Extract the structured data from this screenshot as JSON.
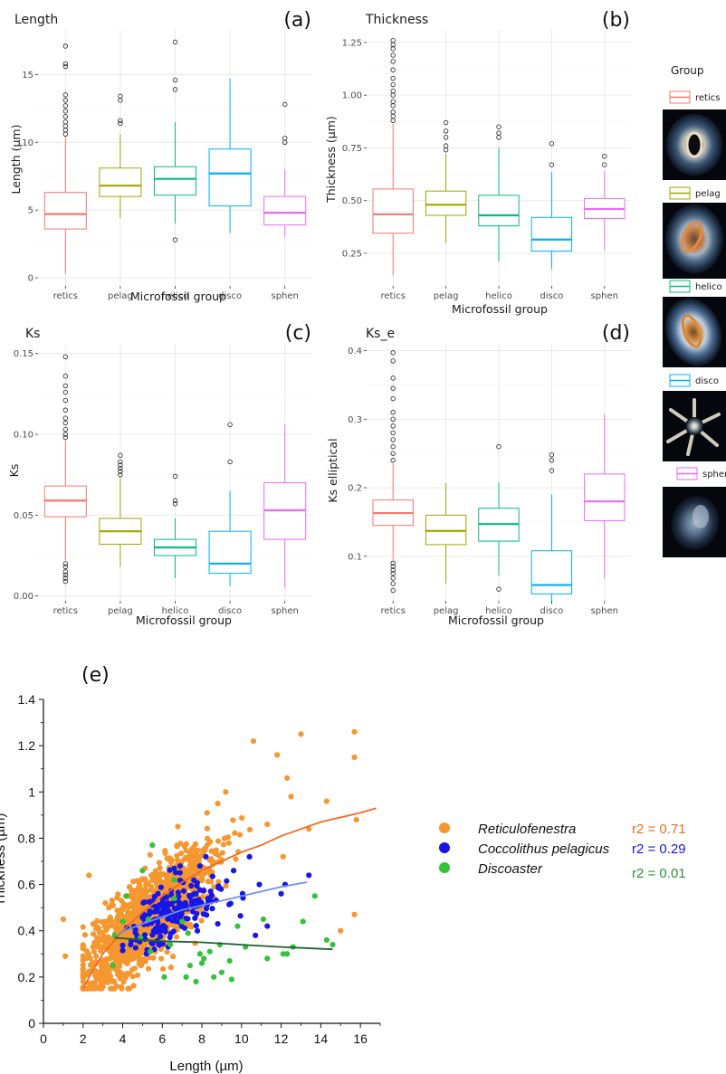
{
  "chart_data": [
    {
      "id": "a",
      "type": "box",
      "panel_label": "(a)",
      "title": "Length",
      "xlabel": "Microfossil group",
      "ylabel": "Length (µm)",
      "ylim": [
        -0.6,
        18.3
      ],
      "yticks": [
        0,
        5,
        10,
        15
      ],
      "ytick_labels": [
        "0",
        "5",
        "10",
        "15"
      ],
      "grid": true,
      "categories": [
        "retics",
        "pelag",
        "helico",
        "disco",
        "sphen"
      ],
      "boxes": [
        {
          "q1": 3.6,
          "median": 4.7,
          "q3": 6.3,
          "lower": 0.3,
          "upper": 10.4,
          "outliers": [
            10.6,
            10.9,
            11.2,
            11.5,
            11.9,
            12.3,
            12.7,
            13.1,
            13.5,
            15.6,
            15.8,
            17.1
          ]
        },
        {
          "q1": 6.0,
          "median": 6.8,
          "q3": 8.1,
          "lower": 4.4,
          "upper": 10.6,
          "outliers": [
            11.4,
            11.6,
            13.1,
            13.4
          ]
        },
        {
          "q1": 6.1,
          "median": 7.3,
          "q3": 8.2,
          "lower": 4.0,
          "upper": 11.5,
          "outliers": [
            2.8,
            13.9,
            14.6,
            17.4
          ]
        },
        {
          "q1": 5.3,
          "median": 7.7,
          "q3": 9.5,
          "lower": 3.3,
          "upper": 14.7,
          "outliers": []
        },
        {
          "q1": 3.9,
          "median": 4.8,
          "q3": 6.0,
          "lower": 3.0,
          "upper": 8.0,
          "outliers": [
            10.0,
            10.3,
            12.8
          ]
        }
      ]
    },
    {
      "id": "b",
      "type": "box",
      "panel_label": "(b)",
      "title": "Thickness",
      "xlabel": "Microfossil group",
      "ylabel": "Thickness (µm)",
      "ylim": [
        0.095,
        1.31
      ],
      "yticks": [
        0.25,
        0.5,
        0.75,
        1.0,
        1.25
      ],
      "ytick_labels": [
        "0.25",
        "0.50",
        "0.75",
        "1.00",
        "1.25"
      ],
      "grid": true,
      "categories": [
        "retics",
        "pelag",
        "helico",
        "disco",
        "sphen"
      ],
      "boxes": [
        {
          "q1": 0.345,
          "median": 0.435,
          "q3": 0.555,
          "lower": 0.145,
          "upper": 0.865,
          "outliers": [
            0.88,
            0.9,
            0.92,
            0.95,
            0.97,
            1.0,
            1.02,
            1.05,
            1.08,
            1.12,
            1.16,
            1.19,
            1.22,
            1.24,
            1.26
          ]
        },
        {
          "q1": 0.43,
          "median": 0.48,
          "q3": 0.545,
          "lower": 0.3,
          "upper": 0.72,
          "outliers": [
            0.74,
            0.76,
            0.8,
            0.83,
            0.87
          ]
        },
        {
          "q1": 0.38,
          "median": 0.43,
          "q3": 0.525,
          "lower": 0.21,
          "upper": 0.75,
          "outliers": [
            0.8,
            0.82,
            0.85
          ]
        },
        {
          "q1": 0.26,
          "median": 0.315,
          "q3": 0.42,
          "lower": 0.175,
          "upper": 0.635,
          "outliers": [
            0.67,
            0.77
          ]
        },
        {
          "q1": 0.415,
          "median": 0.46,
          "q3": 0.51,
          "lower": 0.265,
          "upper": 0.64,
          "outliers": [
            0.67,
            0.71
          ]
        }
      ]
    },
    {
      "id": "c",
      "type": "box",
      "panel_label": "(c)",
      "title": "Ks",
      "xlabel": "Microfossil group",
      "ylabel": "Ks",
      "ylim": [
        -0.003,
        0.156
      ],
      "yticks": [
        0.0,
        0.05,
        0.1,
        0.15
      ],
      "ytick_labels": [
        "0.00",
        "0.05",
        "0.10",
        "0.15"
      ],
      "grid": true,
      "categories": [
        "retics",
        "pelag",
        "helico",
        "disco",
        "sphen"
      ],
      "boxes": [
        {
          "q1": 0.049,
          "median": 0.059,
          "q3": 0.068,
          "lower": 0.022,
          "upper": 0.096,
          "outliers": [
            0.009,
            0.011,
            0.013,
            0.015,
            0.018,
            0.02,
            0.098,
            0.1,
            0.103,
            0.107,
            0.11,
            0.115,
            0.121,
            0.126,
            0.13,
            0.136,
            0.148
          ]
        },
        {
          "q1": 0.032,
          "median": 0.04,
          "q3": 0.048,
          "lower": 0.018,
          "upper": 0.073,
          "outliers": [
            0.075,
            0.077,
            0.079,
            0.081,
            0.083,
            0.087
          ]
        },
        {
          "q1": 0.025,
          "median": 0.03,
          "q3": 0.035,
          "lower": 0.011,
          "upper": 0.048,
          "outliers": [
            0.057,
            0.059,
            0.074
          ]
        },
        {
          "q1": 0.014,
          "median": 0.02,
          "q3": 0.04,
          "lower": 0.006,
          "upper": 0.065,
          "outliers": [
            0.083,
            0.106
          ]
        },
        {
          "q1": 0.035,
          "median": 0.053,
          "q3": 0.07,
          "lower": 0.005,
          "upper": 0.106,
          "outliers": []
        }
      ]
    },
    {
      "id": "d",
      "type": "box",
      "panel_label": "(d)",
      "title": "Ks_e",
      "xlabel": "Microfossil group",
      "ylabel": "Ks elliptical",
      "ylim": [
        0.035,
        0.41
      ],
      "yticks": [
        0.1,
        0.2,
        0.3,
        0.4
      ],
      "ytick_labels": [
        "0.1",
        "0.2",
        "0.3",
        "0.4"
      ],
      "grid": true,
      "categories": [
        "retics",
        "pelag",
        "helico",
        "disco",
        "sphen"
      ],
      "boxes": [
        {
          "q1": 0.145,
          "median": 0.163,
          "q3": 0.182,
          "lower": 0.095,
          "upper": 0.235,
          "outliers": [
            0.05,
            0.06,
            0.068,
            0.075,
            0.08,
            0.085,
            0.09,
            0.24,
            0.25,
            0.26,
            0.27,
            0.28,
            0.29,
            0.3,
            0.31,
            0.33,
            0.345,
            0.36,
            0.385,
            0.397
          ]
        },
        {
          "q1": 0.117,
          "median": 0.137,
          "q3": 0.16,
          "lower": 0.06,
          "upper": 0.207,
          "outliers": []
        },
        {
          "q1": 0.122,
          "median": 0.147,
          "q3": 0.17,
          "lower": 0.072,
          "upper": 0.208,
          "outliers": [
            0.052,
            0.26
          ]
        },
        {
          "q1": 0.045,
          "median": 0.058,
          "q3": 0.108,
          "lower": 0.03,
          "upper": 0.19,
          "outliers": [
            0.225,
            0.24,
            0.248
          ]
        },
        {
          "q1": 0.152,
          "median": 0.18,
          "q3": 0.22,
          "lower": 0.068,
          "upper": 0.307,
          "outliers": []
        }
      ]
    },
    {
      "id": "e",
      "type": "scatter",
      "panel_label": "(e)",
      "xlabel": "Length (µm)",
      "ylabel": "Thickness (µm)",
      "xlim": [
        0,
        17
      ],
      "ylim": [
        0,
        1.4
      ],
      "xticks": [
        0,
        2,
        4,
        6,
        8,
        10,
        12,
        14,
        16
      ],
      "xtick_labels": [
        "0",
        "2",
        "4",
        "6",
        "8",
        "10",
        "12",
        "14",
        "16"
      ],
      "yticks": [
        0,
        0.2,
        0.4,
        0.6,
        0.8,
        1.0,
        1.2,
        1.4
      ],
      "ytick_labels": [
        "0",
        "0.2",
        "0.4",
        "0.6",
        "0.8",
        "1",
        "1.2",
        "1.4"
      ],
      "grid": false,
      "legend_position": "right",
      "series": [
        {
          "name": "Reticulofenestra",
          "color": "#f6962f",
          "r2_label": "r2 = 0.71",
          "r2_color": "#f26b21",
          "line_color": "#f26b21",
          "fit": [
            [
              2,
              0.15
            ],
            [
              2.5,
              0.23
            ],
            [
              3,
              0.3
            ],
            [
              3.5,
              0.35
            ],
            [
              4,
              0.4
            ],
            [
              5,
              0.48
            ],
            [
              6,
              0.55
            ],
            [
              7,
              0.61
            ],
            [
              8,
              0.66
            ],
            [
              9,
              0.7
            ],
            [
              10,
              0.74
            ],
            [
              11,
              0.77
            ],
            [
              12,
              0.81
            ],
            [
              13,
              0.84
            ],
            [
              14,
              0.87
            ],
            [
              15,
              0.89
            ],
            [
              16,
              0.91
            ],
            [
              16.8,
              0.93
            ]
          ],
          "points": [
            [
              1.0,
              0.45
            ],
            [
              1.1,
              0.29
            ],
            [
              2.3,
              0.64
            ],
            [
              2.8,
              0.41
            ],
            [
              3.1,
              0.18
            ],
            [
              3.5,
              0.15
            ],
            [
              3.7,
              0.16
            ],
            [
              11.8,
              1.16
            ],
            [
              12.3,
              1.06
            ],
            [
              13.0,
              1.25
            ],
            [
              13.4,
              0.84
            ],
            [
              15.7,
              1.26
            ],
            [
              15.7,
              1.15
            ],
            [
              15.7,
              0.47
            ],
            [
              15.8,
              0.88
            ],
            [
              14.3,
              0.96
            ],
            [
              12.5,
              0.98
            ],
            [
              11.3,
              0.86
            ],
            [
              10.6,
              1.22
            ],
            [
              12.1,
              0.72
            ],
            [
              15.0,
              0.4
            ],
            [
              8.8,
              0.95
            ],
            [
              9.2,
              1.0
            ],
            [
              3.3,
              0.5
            ],
            [
              2.5,
              0.33
            ]
          ],
          "cloud": {
            "count": 1300,
            "x_center": 5.3,
            "x_spread": 1.6,
            "x_range": [
              2.0,
              12.0
            ],
            "slope": 0.075,
            "intercept": 0.06,
            "y_noise": 0.09,
            "y_range": [
              0.15,
              1.2
            ]
          }
        },
        {
          "name": "Coccolithus pelagicus",
          "color": "#1616e6",
          "r2_label": "r2 = 0.29",
          "r2_color": "#1616e6",
          "line_color": "#6f8ff0",
          "fit": [
            [
              3.8,
              0.39
            ],
            [
              5,
              0.43
            ],
            [
              6,
              0.46
            ],
            [
              7,
              0.49
            ],
            [
              8,
              0.51
            ],
            [
              9,
              0.53
            ],
            [
              10,
              0.55
            ],
            [
              11,
              0.57
            ],
            [
              12,
              0.59
            ],
            [
              13.3,
              0.61
            ]
          ],
          "points": [
            [
              13.4,
              0.64
            ],
            [
              12.2,
              0.6
            ],
            [
              10.4,
              0.72
            ],
            [
              9.6,
              0.66
            ],
            [
              8.2,
              0.72
            ],
            [
              10.9,
              0.6
            ],
            [
              7.9,
              0.68
            ],
            [
              6.6,
              0.67
            ],
            [
              8.8,
              0.43
            ],
            [
              12.0,
              0.56
            ],
            [
              4.4,
              0.34
            ],
            [
              5.2,
              0.3
            ],
            [
              5.6,
              0.32
            ],
            [
              6.9,
              0.68
            ],
            [
              10.7,
              0.38
            ],
            [
              11.3,
              0.42
            ]
          ],
          "cloud": {
            "count": 190,
            "x_center": 6.6,
            "x_spread": 1.3,
            "x_range": [
              4.0,
              11.0
            ],
            "slope": 0.028,
            "intercept": 0.3,
            "y_noise": 0.055,
            "y_range": [
              0.3,
              0.75
            ]
          }
        },
        {
          "name": "Discoaster",
          "color": "#33c23a",
          "r2_label": "r2 = 0.01",
          "r2_color": "#2f8f3a",
          "line_color": "#1f5f2f",
          "fit": [
            [
              3.6,
              0.37
            ],
            [
              5,
              0.36
            ],
            [
              6,
              0.355
            ],
            [
              8,
              0.35
            ],
            [
              10,
              0.34
            ],
            [
              12,
              0.33
            ],
            [
              14.6,
              0.32
            ]
          ],
          "points": [
            [
              3.5,
              0.25
            ],
            [
              3.6,
              0.38
            ],
            [
              4.0,
              0.44
            ],
            [
              4.2,
              0.55
            ],
            [
              4.9,
              0.37
            ],
            [
              5.0,
              0.66
            ],
            [
              5.3,
              0.45
            ],
            [
              5.4,
              0.31
            ],
            [
              5.5,
              0.77
            ],
            [
              6.1,
              0.2
            ],
            [
              6.4,
              0.34
            ],
            [
              6.6,
              0.54
            ],
            [
              6.6,
              0.62
            ],
            [
              7.0,
              0.44
            ],
            [
              7.2,
              0.2
            ],
            [
              7.3,
              0.39
            ],
            [
              7.4,
              0.25
            ],
            [
              7.7,
              0.18
            ],
            [
              7.9,
              0.3
            ],
            [
              8.1,
              0.28
            ],
            [
              8.4,
              0.31
            ],
            [
              8.6,
              0.2
            ],
            [
              8.9,
              0.34
            ],
            [
              9.0,
              0.22
            ],
            [
              9.4,
              0.27
            ],
            [
              9.8,
              0.42
            ],
            [
              10.2,
              0.33
            ],
            [
              11.1,
              0.45
            ],
            [
              11.3,
              0.28
            ],
            [
              12.1,
              0.3
            ],
            [
              12.3,
              0.3
            ],
            [
              12.6,
              0.33
            ],
            [
              13.1,
              0.44
            ],
            [
              14.3,
              0.36
            ],
            [
              14.6,
              0.34
            ],
            [
              13.7,
              0.55
            ],
            [
              9.5,
              0.19
            ],
            [
              8.0,
              0.26
            ]
          ],
          "cloud": null
        }
      ]
    }
  ],
  "legend": {
    "title": "Group",
    "items": [
      {
        "label": "retics",
        "color": "#f8766d"
      },
      {
        "label": "pelag",
        "color": "#a3a500"
      },
      {
        "label": "helico",
        "color": "#00bf7d"
      },
      {
        "label": "disco",
        "color": "#00b0f6"
      },
      {
        "label": "sphen",
        "color": "#e76bf3"
      }
    ]
  },
  "colors": {
    "box_colors": [
      "#f8766d",
      "#a3a500",
      "#00bf7d",
      "#00b0f6",
      "#e76bf3"
    ],
    "panel_background": "#ffffff",
    "grid": "#ebebeb",
    "image_background": "#05070d"
  }
}
